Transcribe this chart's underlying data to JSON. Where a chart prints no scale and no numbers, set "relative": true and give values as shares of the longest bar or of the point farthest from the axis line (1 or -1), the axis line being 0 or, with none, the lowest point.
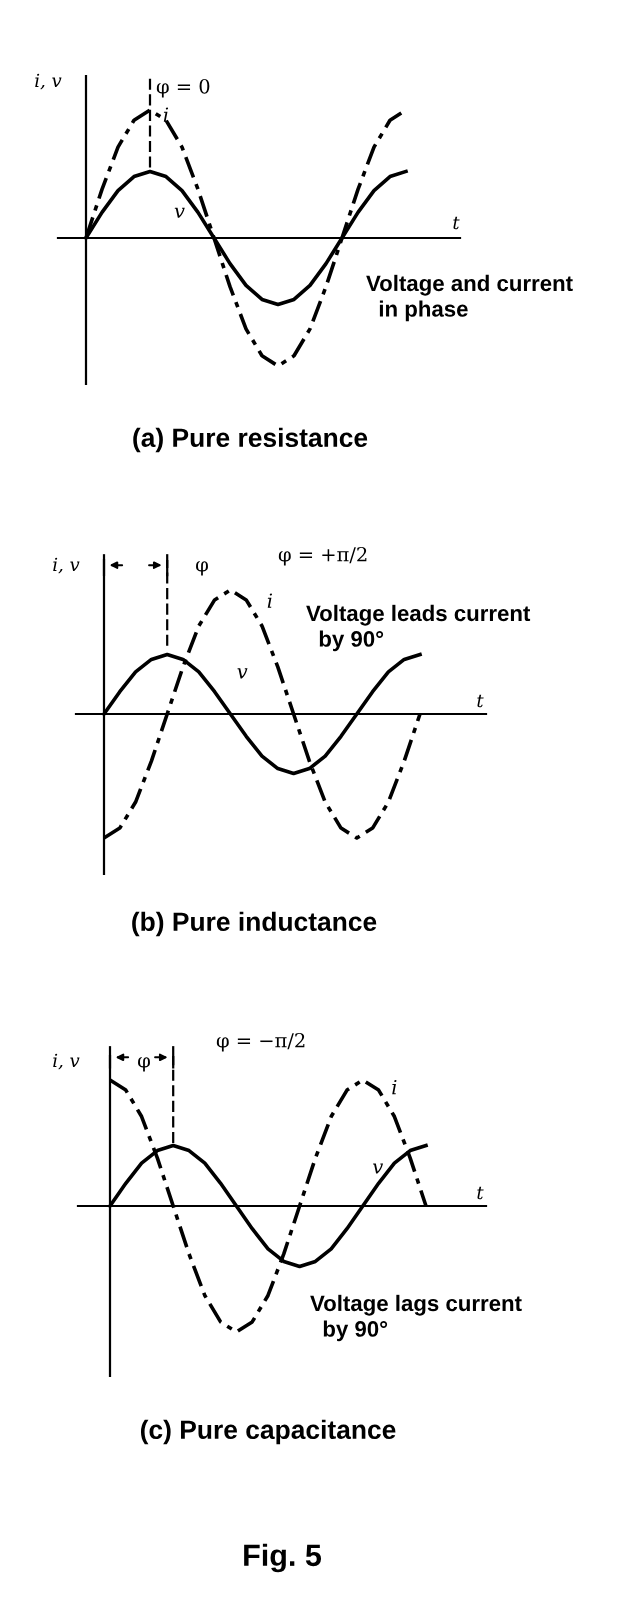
{
  "chart_data": [
    {
      "type": "line",
      "relative": true,
      "title": "(a) Pure resistance",
      "xlabel": "t",
      "ylabel": "i, v",
      "categories": [
        null,
        null,
        null,
        null,
        null,
        null,
        null,
        null,
        null,
        null,
        null,
        null,
        null,
        null,
        null,
        null,
        null,
        null,
        null,
        null,
        null
      ],
      "series": [
        {
          "name": "i",
          "color": "#000000",
          "line_style": "dashed",
          "values": [
            0,
            0.38,
            0.71,
            0.92,
            1,
            0.92,
            0.71,
            0.38,
            0,
            -0.38,
            -0.71,
            -0.92,
            -1,
            -0.92,
            -0.71,
            -0.38,
            0,
            0.38,
            0.71,
            0.92,
            1
          ]
        },
        {
          "name": "v",
          "color": "#000000",
          "line_style": "solid",
          "values": [
            0,
            0.2,
            0.37,
            0.48,
            0.52,
            0.48,
            0.37,
            0.2,
            0,
            -0.2,
            -0.37,
            -0.48,
            -0.52,
            -0.48,
            -0.37,
            -0.2,
            0,
            0.2,
            0.37,
            0.48,
            0.52
          ]
        }
      ],
      "annotations": [
        "φ = 0",
        "Voltage and current\n  in phase"
      ]
    },
    {
      "type": "line",
      "relative": true,
      "title": "(b) Pure inductance",
      "xlabel": "t",
      "ylabel": "i, v",
      "categories": [
        null,
        null,
        null,
        null,
        null,
        null,
        null,
        null,
        null,
        null,
        null,
        null,
        null,
        null,
        null,
        null,
        null,
        null,
        null,
        null,
        null
      ],
      "series": [
        {
          "name": "i",
          "color": "#000000",
          "line_style": "dashed",
          "values": [
            -1,
            -0.92,
            -0.71,
            -0.38,
            0,
            0.38,
            0.71,
            0.92,
            1,
            0.92,
            0.71,
            0.38,
            0,
            -0.38,
            -0.71,
            -0.92,
            -1,
            -0.92,
            -0.71,
            -0.38,
            0
          ]
        },
        {
          "name": "v",
          "color": "#000000",
          "line_style": "solid",
          "values": [
            0,
            0.18,
            0.34,
            0.44,
            0.48,
            0.44,
            0.34,
            0.18,
            0,
            -0.18,
            -0.34,
            -0.44,
            -0.48,
            -0.44,
            -0.34,
            -0.18,
            0,
            0.18,
            0.34,
            0.44,
            0.48
          ]
        }
      ],
      "annotations": [
        "φ = +π/2",
        "Voltage leads current\n  by 90°",
        "φ"
      ]
    },
    {
      "type": "line",
      "relative": true,
      "title": "(c) Pure capacitance",
      "xlabel": "t",
      "ylabel": "i, v",
      "categories": [
        null,
        null,
        null,
        null,
        null,
        null,
        null,
        null,
        null,
        null,
        null,
        null,
        null,
        null,
        null,
        null,
        null,
        null,
        null,
        null,
        null
      ],
      "series": [
        {
          "name": "i",
          "color": "#000000",
          "line_style": "dashed",
          "values": [
            1,
            0.92,
            0.71,
            0.38,
            0,
            -0.38,
            -0.71,
            -0.92,
            -1,
            -0.92,
            -0.71,
            -0.38,
            0,
            0.38,
            0.71,
            0.92,
            1,
            0.92,
            0.71,
            0.38,
            0
          ]
        },
        {
          "name": "v",
          "color": "#000000",
          "line_style": "solid",
          "values": [
            0,
            0.18,
            0.34,
            0.44,
            0.48,
            0.44,
            0.34,
            0.18,
            0,
            -0.18,
            -0.34,
            -0.44,
            -0.48,
            -0.44,
            -0.34,
            -0.18,
            0,
            0.18,
            0.34,
            0.44,
            0.48
          ]
        }
      ],
      "annotations": [
        "φ = −π/2",
        "Voltage lags current\n  by 90°",
        "φ",
        "Fig. 5"
      ]
    }
  ]
}
